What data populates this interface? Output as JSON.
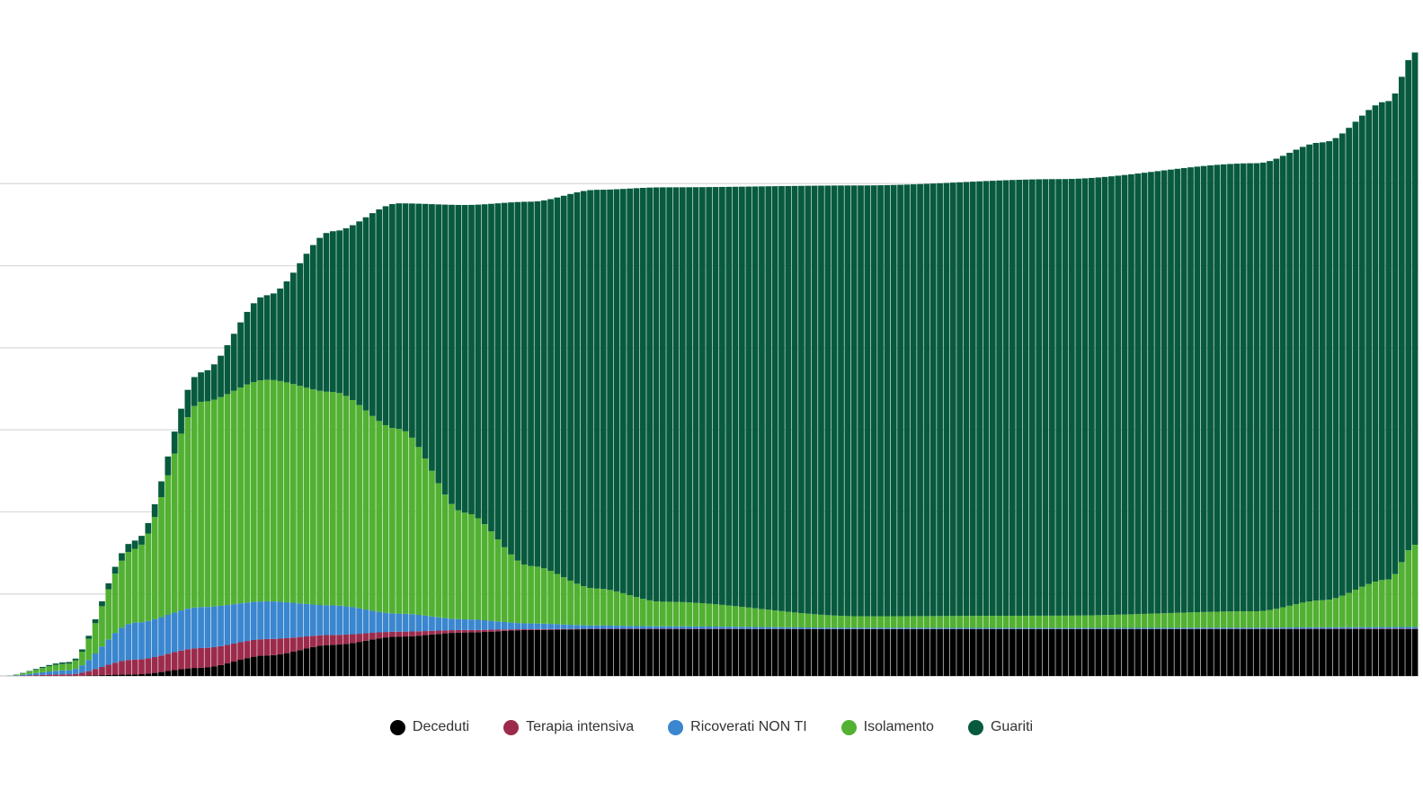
{
  "chart_data": {
    "type": "area",
    "stacked": true,
    "title": "",
    "xlabel": "",
    "ylabel": "",
    "ylim": [
      0,
      7
    ],
    "grid": true,
    "gridlines_y": [
      1,
      2,
      3,
      4,
      5,
      6
    ],
    "legend_position": "bottom-center",
    "num_bars": 215,
    "x_keyframes": [
      0,
      10,
      20,
      30,
      40,
      50,
      60,
      70,
      80,
      90,
      100,
      130,
      160,
      190,
      200,
      210,
      214
    ],
    "series": [
      {
        "name": "Deceduti",
        "color": "#000000",
        "keyframe_values": [
          0,
          0,
          0.02,
          0.1,
          0.25,
          0.38,
          0.48,
          0.53,
          0.56,
          0.57,
          0.57,
          0.57,
          0.57,
          0.57,
          0.57,
          0.57,
          0.57
        ]
      },
      {
        "name": "Terapia intensiva",
        "color": "#9c2b4b",
        "keyframe_values": [
          0,
          0.02,
          0.18,
          0.24,
          0.2,
          0.12,
          0.06,
          0.03,
          0.01,
          0.005,
          0.005,
          0.003,
          0.003,
          0.004,
          0.005,
          0.006,
          0.006
        ]
      },
      {
        "name": "Ricoverati NON TI",
        "color": "#3a86cf",
        "keyframe_values": [
          0,
          0.05,
          0.45,
          0.5,
          0.46,
          0.36,
          0.22,
          0.13,
          0.07,
          0.04,
          0.03,
          0.015,
          0.012,
          0.015,
          0.018,
          0.02,
          0.022
        ]
      },
      {
        "name": "Isolamento",
        "color": "#52b132",
        "keyframe_values": [
          0,
          0.08,
          0.9,
          2.5,
          2.7,
          2.6,
          2.25,
          1.3,
          0.7,
          0.45,
          0.3,
          0.14,
          0.15,
          0.2,
          0.33,
          0.58,
          1.0
        ]
      },
      {
        "name": "Guariti",
        "color": "#075a3e",
        "keyframe_values": [
          0,
          0.02,
          0.1,
          0.36,
          1.03,
          1.96,
          2.75,
          3.75,
          4.44,
          4.86,
          5.05,
          5.25,
          5.32,
          5.46,
          5.58,
          5.83,
          6.0
        ]
      }
    ]
  }
}
